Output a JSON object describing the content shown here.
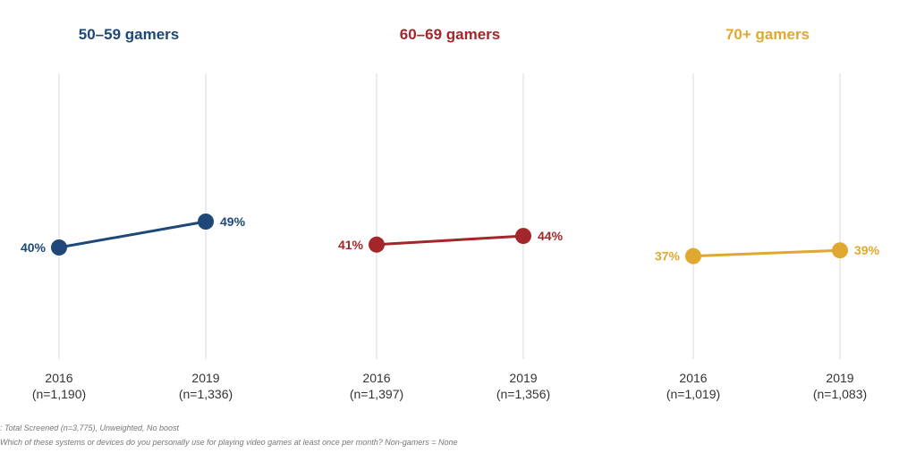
{
  "chart_data": [
    {
      "type": "line",
      "title": "50–59 gamers",
      "color": "#1d4877",
      "categories": [
        "2016",
        "2019"
      ],
      "category_n": [
        "(n=1,190)",
        "(n=1,336)"
      ],
      "values": [
        40,
        49
      ],
      "value_labels": [
        "40%",
        "49%"
      ],
      "ylim": [
        0,
        100
      ],
      "grid": "vertical"
    },
    {
      "type": "line",
      "title": "60–69 gamers",
      "color": "#a3262a",
      "categories": [
        "2016",
        "2019"
      ],
      "category_n": [
        "(n=1,397)",
        "(n=1,356)"
      ],
      "values": [
        41,
        44
      ],
      "value_labels": [
        "41%",
        "44%"
      ],
      "ylim": [
        0,
        100
      ],
      "grid": "vertical"
    },
    {
      "type": "line",
      "title": "70+ gamers",
      "color": "#e0a82e",
      "categories": [
        "2016",
        "2019"
      ],
      "category_n": [
        "(n=1,019)",
        "(n=1,083)"
      ],
      "values": [
        37,
        39
      ],
      "value_labels": [
        "37%",
        "39%"
      ],
      "ylim": [
        0,
        100
      ],
      "grid": "vertical"
    }
  ],
  "footnotes": {
    "base": ": Total Screened (n=3,775), Unweighted, No boost",
    "question": "Which of these systems or devices do you personally use for playing video games at least once per month? Non-gamers = None"
  }
}
